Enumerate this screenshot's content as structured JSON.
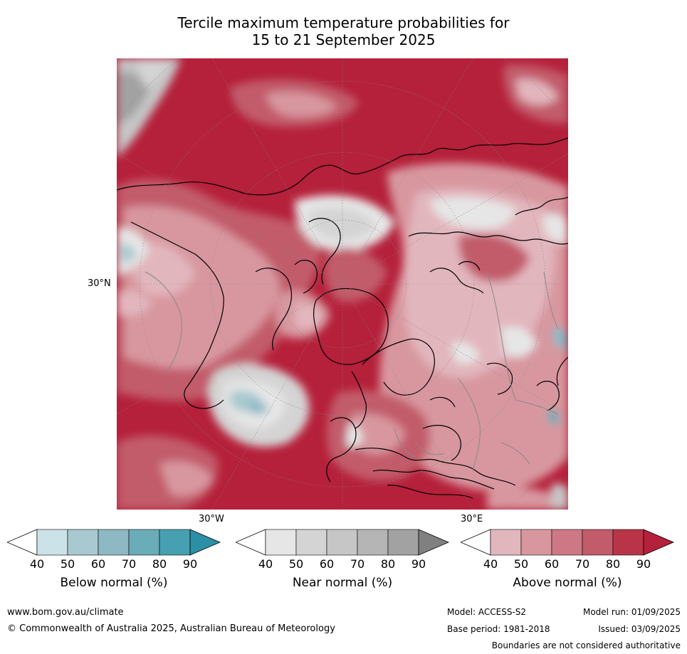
{
  "title": {
    "line1": "Tercile maximum temperature probabilities for",
    "line2": "15 to 21 September 2025"
  },
  "map": {
    "lat_label": "30°N",
    "lon_label_left": "30°W",
    "lon_label_right": "30°E"
  },
  "colorbars": [
    {
      "label": "Below normal (%)",
      "ticks": [
        "40",
        "50",
        "60",
        "70",
        "80",
        "90"
      ],
      "colors": [
        "#cbe2e8",
        "#a8c9cf",
        "#8db8c4",
        "#6aacb8",
        "#46a0b1",
        "#2b8fa6"
      ]
    },
    {
      "label": "Near normal (%)",
      "ticks": [
        "40",
        "50",
        "60",
        "70",
        "80",
        "90"
      ],
      "colors": [
        "#e6e6e6",
        "#d4d4d4",
        "#c6c6c6",
        "#b5b5b5",
        "#a2a2a2",
        "#808080"
      ]
    },
    {
      "label": "Above normal (%)",
      "ticks": [
        "40",
        "50",
        "60",
        "70",
        "80",
        "90"
      ],
      "colors": [
        "#e2b6bd",
        "#d8979f",
        "#cc7885",
        "#c25c6b",
        "#b93448",
        "#b5203a"
      ]
    }
  ],
  "footer": {
    "website": "www.bom.gov.au/climate",
    "copyright": "© Commonwealth of Australia 2025, Australian Bureau of Meteorology",
    "model": "Model: ACCESS-S2",
    "base_period": "Base period: 1981-2018",
    "model_run": "Model run: 01/09/2025",
    "issued": "Issued: 03/09/2025",
    "disclaimer": "Boundaries are not considered authoritative"
  }
}
